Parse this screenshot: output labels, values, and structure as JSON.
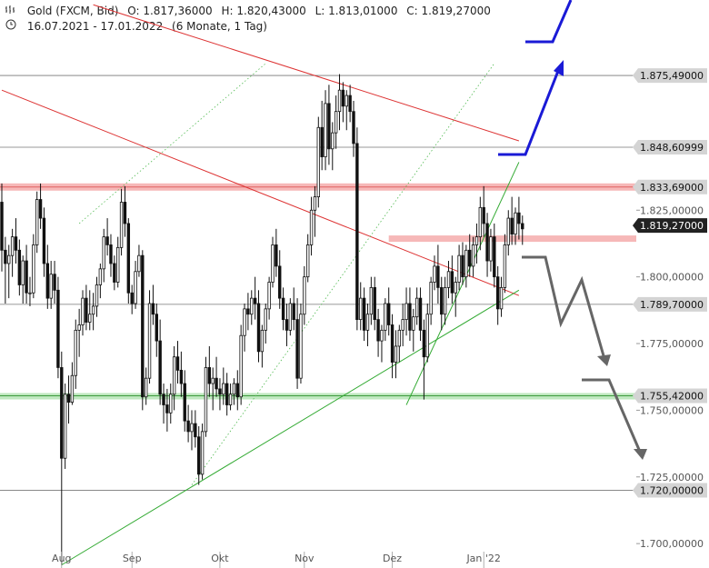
{
  "header": {
    "instrument": "Gold (FXCM, Bid)",
    "open": "O: 1.817,36000",
    "high": "H: 1.820,43000",
    "low": "L: 1.813,01000",
    "close": "C: 1.819,27000",
    "range": "16.07.2021 - 17.01.2022",
    "period": "(6 Monate, 1 Tag)",
    "icons": [
      "bar-chart-icon",
      "clock-icon"
    ]
  },
  "chart_data": {
    "type": "candlestick",
    "title": "Gold (FXCM, Bid)",
    "x_labels": [
      "Aug",
      "Sep",
      "Okt",
      "Nov",
      "Dez",
      "Jan '22"
    ],
    "y_ticks": [
      "1.825,00000",
      "1.800,00000",
      "1.775,00000",
      "1.750,00000",
      "1.725,00000",
      "1.700,00000"
    ],
    "ylim": [
      1690,
      1905
    ],
    "price_lines": [
      {
        "label": "1.875,49000",
        "value": 1875.49,
        "style": "gray"
      },
      {
        "label": "1.848,60999",
        "value": 1848.61,
        "style": "gray"
      },
      {
        "label": "1.833,69000",
        "value": 1833.69,
        "style": "resistance-red"
      },
      {
        "label": "1.819,27000",
        "value": 1819.27,
        "style": "current"
      },
      {
        "label": "1.789,70000",
        "value": 1789.7,
        "style": "gray"
      },
      {
        "label": "1.755,42000",
        "value": 1755.42,
        "style": "support-green"
      },
      {
        "label": "1.720,00000",
        "value": 1720.0,
        "style": "gray"
      }
    ],
    "secondary_zone": {
      "value": 1814.5,
      "from_day": 110
    },
    "candles_ohlc": [
      [
        1828,
        1835,
        1802,
        1810
      ],
      [
        1810,
        1815,
        1790,
        1805
      ],
      [
        1805,
        1812,
        1792,
        1808
      ],
      [
        1808,
        1818,
        1800,
        1815
      ],
      [
        1815,
        1822,
        1805,
        1810
      ],
      [
        1810,
        1814,
        1793,
        1797
      ],
      [
        1797,
        1808,
        1790,
        1806
      ],
      [
        1806,
        1812,
        1790,
        1794
      ],
      [
        1794,
        1800,
        1789,
        1794
      ],
      [
        1794,
        1816,
        1792,
        1812
      ],
      [
        1812,
        1832,
        1809,
        1829
      ],
      [
        1829,
        1835,
        1818,
        1822
      ],
      [
        1822,
        1826,
        1800,
        1805
      ],
      [
        1805,
        1812,
        1788,
        1792
      ],
      [
        1792,
        1806,
        1788,
        1801
      ],
      [
        1801,
        1806,
        1790,
        1795
      ],
      [
        1795,
        1800,
        1762,
        1766
      ],
      [
        1766,
        1772,
        1692,
        1732
      ],
      [
        1732,
        1760,
        1728,
        1756
      ],
      [
        1756,
        1763,
        1745,
        1753
      ],
      [
        1753,
        1768,
        1752,
        1763
      ],
      [
        1763,
        1784,
        1758,
        1780
      ],
      [
        1780,
        1788,
        1770,
        1782
      ],
      [
        1782,
        1795,
        1778,
        1792
      ],
      [
        1792,
        1797,
        1780,
        1783
      ],
      [
        1783,
        1795,
        1780,
        1786
      ],
      [
        1786,
        1794,
        1780,
        1789
      ],
      [
        1789,
        1800,
        1785,
        1797
      ],
      [
        1797,
        1805,
        1792,
        1803
      ],
      [
        1803,
        1818,
        1798,
        1815
      ],
      [
        1815,
        1822,
        1808,
        1812
      ],
      [
        1812,
        1816,
        1800,
        1805
      ],
      [
        1805,
        1808,
        1795,
        1798
      ],
      [
        1798,
        1815,
        1796,
        1811
      ],
      [
        1811,
        1833,
        1808,
        1828
      ],
      [
        1828,
        1834,
        1815,
        1820
      ],
      [
        1820,
        1822,
        1790,
        1794
      ],
      [
        1794,
        1797,
        1786,
        1790
      ],
      [
        1790,
        1806,
        1788,
        1802
      ],
      [
        1802,
        1812,
        1800,
        1808
      ],
      [
        1808,
        1810,
        1750,
        1755
      ],
      [
        1755,
        1766,
        1752,
        1762
      ],
      [
        1762,
        1795,
        1760,
        1790
      ],
      [
        1790,
        1797,
        1782,
        1786
      ],
      [
        1786,
        1790,
        1770,
        1776
      ],
      [
        1776,
        1784,
        1752,
        1756
      ],
      [
        1756,
        1760,
        1745,
        1752
      ],
      [
        1752,
        1758,
        1742,
        1749
      ],
      [
        1749,
        1760,
        1745,
        1756
      ],
      [
        1756,
        1774,
        1750,
        1770
      ],
      [
        1770,
        1776,
        1760,
        1765
      ],
      [
        1765,
        1772,
        1755,
        1760
      ],
      [
        1760,
        1765,
        1742,
        1746
      ],
      [
        1746,
        1752,
        1738,
        1742
      ],
      [
        1742,
        1750,
        1735,
        1745
      ],
      [
        1745,
        1750,
        1736,
        1740
      ],
      [
        1740,
        1744,
        1722,
        1726
      ],
      [
        1726,
        1745,
        1724,
        1742
      ],
      [
        1742,
        1770,
        1740,
        1766
      ],
      [
        1766,
        1774,
        1755,
        1760
      ],
      [
        1760,
        1766,
        1750,
        1762
      ],
      [
        1762,
        1770,
        1755,
        1758
      ],
      [
        1758,
        1762,
        1750,
        1756
      ],
      [
        1756,
        1766,
        1752,
        1760
      ],
      [
        1760,
        1764,
        1748,
        1752
      ],
      [
        1752,
        1760,
        1750,
        1756
      ],
      [
        1756,
        1762,
        1752,
        1760
      ],
      [
        1760,
        1765,
        1750,
        1755
      ],
      [
        1755,
        1782,
        1752,
        1778
      ],
      [
        1778,
        1790,
        1772,
        1788
      ],
      [
        1788,
        1794,
        1780,
        1786
      ],
      [
        1786,
        1795,
        1782,
        1792
      ],
      [
        1792,
        1800,
        1784,
        1790
      ],
      [
        1790,
        1795,
        1768,
        1772
      ],
      [
        1772,
        1782,
        1766,
        1780
      ],
      [
        1780,
        1790,
        1775,
        1788
      ],
      [
        1788,
        1800,
        1784,
        1798
      ],
      [
        1798,
        1815,
        1796,
        1812
      ],
      [
        1812,
        1818,
        1800,
        1804
      ],
      [
        1804,
        1810,
        1788,
        1792
      ],
      [
        1792,
        1796,
        1780,
        1784
      ],
      [
        1784,
        1790,
        1774,
        1780
      ],
      [
        1780,
        1792,
        1778,
        1790
      ],
      [
        1790,
        1796,
        1780,
        1784
      ],
      [
        1784,
        1792,
        1758,
        1762
      ],
      [
        1762,
        1790,
        1760,
        1786
      ],
      [
        1786,
        1804,
        1782,
        1800
      ],
      [
        1800,
        1816,
        1798,
        1812
      ],
      [
        1812,
        1830,
        1808,
        1825
      ],
      [
        1825,
        1834,
        1815,
        1830
      ],
      [
        1830,
        1860,
        1826,
        1856
      ],
      [
        1856,
        1866,
        1840,
        1845
      ],
      [
        1845,
        1870,
        1840,
        1865
      ],
      [
        1865,
        1872,
        1842,
        1848
      ],
      [
        1848,
        1858,
        1840,
        1854
      ],
      [
        1854,
        1868,
        1848,
        1862
      ],
      [
        1862,
        1876,
        1855,
        1870
      ],
      [
        1870,
        1873,
        1858,
        1864
      ],
      [
        1864,
        1870,
        1855,
        1868
      ],
      [
        1868,
        1872,
        1858,
        1862
      ],
      [
        1862,
        1866,
        1845,
        1850
      ],
      [
        1850,
        1856,
        1780,
        1784
      ],
      [
        1784,
        1798,
        1780,
        1792
      ],
      [
        1792,
        1796,
        1776,
        1780
      ],
      [
        1780,
        1790,
        1774,
        1786
      ],
      [
        1786,
        1800,
        1782,
        1796
      ],
      [
        1796,
        1800,
        1780,
        1784
      ],
      [
        1784,
        1788,
        1770,
        1776
      ],
      [
        1776,
        1782,
        1768,
        1780
      ],
      [
        1780,
        1792,
        1776,
        1790
      ],
      [
        1790,
        1796,
        1778,
        1782
      ],
      [
        1782,
        1786,
        1762,
        1768
      ],
      [
        1768,
        1780,
        1762,
        1774
      ],
      [
        1774,
        1782,
        1768,
        1780
      ],
      [
        1780,
        1790,
        1774,
        1784
      ],
      [
        1784,
        1796,
        1778,
        1790
      ],
      [
        1790,
        1796,
        1776,
        1780
      ],
      [
        1780,
        1788,
        1772,
        1785
      ],
      [
        1785,
        1796,
        1782,
        1792
      ],
      [
        1792,
        1796,
        1776,
        1780
      ],
      [
        1780,
        1784,
        1754,
        1770
      ],
      [
        1770,
        1790,
        1768,
        1786
      ],
      [
        1786,
        1800,
        1782,
        1798
      ],
      [
        1798,
        1808,
        1795,
        1804
      ],
      [
        1804,
        1812,
        1790,
        1796
      ],
      [
        1796,
        1800,
        1780,
        1786
      ],
      [
        1786,
        1800,
        1782,
        1796
      ],
      [
        1796,
        1806,
        1792,
        1802
      ],
      [
        1802,
        1808,
        1790,
        1794
      ],
      [
        1794,
        1800,
        1785,
        1798
      ],
      [
        1798,
        1812,
        1795,
        1808
      ],
      [
        1808,
        1813,
        1797,
        1800
      ],
      [
        1800,
        1812,
        1796,
        1810
      ],
      [
        1810,
        1816,
        1800,
        1804
      ],
      [
        1804,
        1815,
        1800,
        1812
      ],
      [
        1812,
        1820,
        1805,
        1815
      ],
      [
        1815,
        1830,
        1810,
        1826
      ],
      [
        1826,
        1834,
        1815,
        1820
      ],
      [
        1820,
        1824,
        1800,
        1806
      ],
      [
        1806,
        1818,
        1802,
        1815
      ],
      [
        1815,
        1820,
        1796,
        1800
      ],
      [
        1800,
        1804,
        1782,
        1788
      ],
      [
        1788,
        1800,
        1785,
        1796
      ],
      [
        1796,
        1816,
        1794,
        1812
      ],
      [
        1812,
        1825,
        1808,
        1822
      ],
      [
        1822,
        1830,
        1812,
        1816
      ],
      [
        1816,
        1826,
        1812,
        1824
      ],
      [
        1824,
        1830,
        1814,
        1820
      ],
      [
        1820,
        1823,
        1812,
        1818
      ]
    ],
    "trendlines": [
      {
        "kind": "red-descending-1",
        "points": [
          [
            0,
            1870
          ],
          [
            147,
            1793
          ]
        ]
      },
      {
        "kind": "red-descending-2",
        "points": [
          [
            26,
            1902
          ],
          [
            147,
            1851
          ]
        ]
      },
      {
        "kind": "green-ascending-1",
        "points": [
          [
            17,
            1692
          ],
          [
            147,
            1795
          ]
        ]
      },
      {
        "kind": "green-ascending-2",
        "points": [
          [
            115,
            1752
          ],
          [
            147,
            1843
          ]
        ]
      },
      {
        "kind": "dotted-channel-1",
        "points": [
          [
            22,
            1820
          ],
          [
            75,
            1880
          ]
        ]
      },
      {
        "kind": "dotted-channel-2",
        "points": [
          [
            54,
            1722
          ],
          [
            140,
            1880
          ]
        ]
      }
    ],
    "scenario_arrows": [
      {
        "color": "blue",
        "points": [
          [
            135,
            1808
          ],
          [
            147,
            1860
          ]
        ]
      },
      {
        "color": "gray",
        "points": [
          [
            136,
            1800
          ],
          [
            145,
            1752
          ]
        ]
      }
    ]
  }
}
